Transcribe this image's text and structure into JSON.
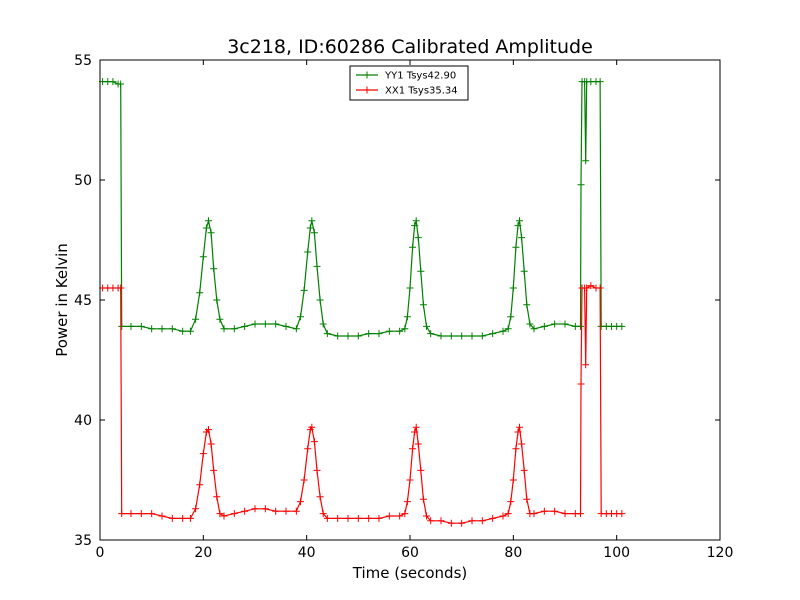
{
  "chart_data": {
    "type": "line",
    "title": "3c218, ID:60286 Calibrated Amplitude",
    "xlabel": "Time (seconds)",
    "ylabel": "Power in Kelvin",
    "xlim": [
      0,
      120
    ],
    "ylim": [
      35,
      55
    ],
    "xticks": [
      "0",
      "20",
      "40",
      "60",
      "80",
      "100",
      "120"
    ],
    "yticks": [
      "35",
      "40",
      "45",
      "50",
      "55"
    ],
    "grid": false,
    "legend_position": "top-center",
    "marker": "+",
    "series": [
      {
        "name": "YY1 Tsys42.90",
        "color": "#008000",
        "points": [
          [
            0.5,
            54.1
          ],
          [
            1.5,
            54.1
          ],
          [
            2.5,
            54.1
          ],
          [
            3.5,
            54.0
          ],
          [
            4.0,
            54.0
          ],
          [
            4.2,
            43.9
          ],
          [
            6,
            43.9
          ],
          [
            8,
            43.9
          ],
          [
            10,
            43.8
          ],
          [
            12,
            43.8
          ],
          [
            14,
            43.8
          ],
          [
            16,
            43.7
          ],
          [
            17.5,
            43.7
          ],
          [
            18.5,
            44.2
          ],
          [
            19.3,
            45.3
          ],
          [
            20.0,
            46.8
          ],
          [
            20.6,
            48.0
          ],
          [
            21.0,
            48.3
          ],
          [
            21.5,
            47.8
          ],
          [
            22.0,
            46.3
          ],
          [
            22.6,
            45.0
          ],
          [
            23.2,
            44.2
          ],
          [
            24,
            43.8
          ],
          [
            26,
            43.8
          ],
          [
            28,
            43.9
          ],
          [
            30,
            44.0
          ],
          [
            32,
            44.0
          ],
          [
            34,
            44.0
          ],
          [
            36,
            43.9
          ],
          [
            38,
            43.8
          ],
          [
            38.8,
            44.3
          ],
          [
            39.5,
            45.4
          ],
          [
            40.2,
            47.0
          ],
          [
            40.7,
            48.0
          ],
          [
            41.0,
            48.3
          ],
          [
            41.5,
            47.8
          ],
          [
            42.0,
            46.4
          ],
          [
            42.6,
            45.0
          ],
          [
            43.2,
            44.0
          ],
          [
            44,
            43.6
          ],
          [
            46,
            43.5
          ],
          [
            48,
            43.5
          ],
          [
            50,
            43.5
          ],
          [
            52,
            43.6
          ],
          [
            54,
            43.6
          ],
          [
            56,
            43.7
          ],
          [
            58,
            43.7
          ],
          [
            59,
            43.8
          ],
          [
            59.5,
            44.3
          ],
          [
            60.0,
            45.5
          ],
          [
            60.5,
            47.2
          ],
          [
            60.9,
            48.1
          ],
          [
            61.2,
            48.3
          ],
          [
            61.6,
            47.6
          ],
          [
            62.1,
            46.2
          ],
          [
            62.6,
            44.8
          ],
          [
            63.2,
            43.9
          ],
          [
            64,
            43.6
          ],
          [
            66,
            43.5
          ],
          [
            68,
            43.5
          ],
          [
            70,
            43.5
          ],
          [
            72,
            43.5
          ],
          [
            74,
            43.5
          ],
          [
            76,
            43.6
          ],
          [
            78,
            43.7
          ],
          [
            79,
            43.8
          ],
          [
            79.5,
            44.3
          ],
          [
            80.0,
            45.5
          ],
          [
            80.5,
            47.2
          ],
          [
            80.9,
            48.1
          ],
          [
            81.2,
            48.3
          ],
          [
            81.6,
            47.6
          ],
          [
            82.1,
            46.2
          ],
          [
            82.6,
            44.8
          ],
          [
            83.2,
            44.0
          ],
          [
            84,
            43.8
          ],
          [
            86,
            43.9
          ],
          [
            88,
            44.0
          ],
          [
            90,
            44.0
          ],
          [
            92,
            43.9
          ],
          [
            93.0,
            43.9
          ],
          [
            93.1,
            49.8
          ],
          [
            93.3,
            54.1
          ],
          [
            93.8,
            54.1
          ],
          [
            94.0,
            50.8
          ],
          [
            94.2,
            54.1
          ],
          [
            95,
            54.1
          ],
          [
            96,
            54.1
          ],
          [
            96.8,
            54.1
          ],
          [
            97.0,
            43.9
          ],
          [
            98,
            43.9
          ],
          [
            99,
            43.9
          ],
          [
            100,
            43.9
          ],
          [
            101,
            43.9
          ]
        ]
      },
      {
        "name": "XX1 Tsys35.34",
        "color": "#ff0000",
        "points": [
          [
            0.5,
            45.5
          ],
          [
            1.5,
            45.5
          ],
          [
            2.5,
            45.5
          ],
          [
            3.5,
            45.5
          ],
          [
            4.0,
            45.5
          ],
          [
            4.2,
            36.1
          ],
          [
            6,
            36.1
          ],
          [
            8,
            36.1
          ],
          [
            10,
            36.1
          ],
          [
            12,
            36.0
          ],
          [
            14,
            35.9
          ],
          [
            16,
            35.9
          ],
          [
            17.5,
            35.9
          ],
          [
            18.5,
            36.3
          ],
          [
            19.3,
            37.3
          ],
          [
            20.0,
            38.6
          ],
          [
            20.6,
            39.5
          ],
          [
            21.0,
            39.6
          ],
          [
            21.5,
            39.0
          ],
          [
            22.0,
            37.9
          ],
          [
            22.6,
            36.8
          ],
          [
            23.2,
            36.1
          ],
          [
            24,
            36.0
          ],
          [
            26,
            36.1
          ],
          [
            28,
            36.2
          ],
          [
            30,
            36.3
          ],
          [
            32,
            36.3
          ],
          [
            34,
            36.2
          ],
          [
            36,
            36.2
          ],
          [
            38,
            36.2
          ],
          [
            38.8,
            36.6
          ],
          [
            39.5,
            37.5
          ],
          [
            40.2,
            38.8
          ],
          [
            40.7,
            39.6
          ],
          [
            41.0,
            39.7
          ],
          [
            41.5,
            39.1
          ],
          [
            42.0,
            37.9
          ],
          [
            42.6,
            36.8
          ],
          [
            43.2,
            36.1
          ],
          [
            44,
            35.9
          ],
          [
            46,
            35.9
          ],
          [
            48,
            35.9
          ],
          [
            50,
            35.9
          ],
          [
            52,
            35.9
          ],
          [
            54,
            35.9
          ],
          [
            56,
            36.0
          ],
          [
            58,
            36.0
          ],
          [
            59,
            36.1
          ],
          [
            59.5,
            36.6
          ],
          [
            60.0,
            37.5
          ],
          [
            60.5,
            38.8
          ],
          [
            60.9,
            39.5
          ],
          [
            61.2,
            39.7
          ],
          [
            61.6,
            39.0
          ],
          [
            62.1,
            37.9
          ],
          [
            62.6,
            36.7
          ],
          [
            63.2,
            36.0
          ],
          [
            64,
            35.8
          ],
          [
            66,
            35.8
          ],
          [
            68,
            35.7
          ],
          [
            70,
            35.7
          ],
          [
            72,
            35.8
          ],
          [
            74,
            35.8
          ],
          [
            76,
            35.9
          ],
          [
            78,
            36.0
          ],
          [
            79,
            36.1
          ],
          [
            79.5,
            36.6
          ],
          [
            80.0,
            37.5
          ],
          [
            80.5,
            38.8
          ],
          [
            80.9,
            39.5
          ],
          [
            81.2,
            39.7
          ],
          [
            81.6,
            39.0
          ],
          [
            82.1,
            37.9
          ],
          [
            82.6,
            36.7
          ],
          [
            83.2,
            36.1
          ],
          [
            84,
            36.1
          ],
          [
            86,
            36.2
          ],
          [
            88,
            36.2
          ],
          [
            90,
            36.1
          ],
          [
            92,
            36.1
          ],
          [
            93.0,
            36.1
          ],
          [
            93.1,
            41.5
          ],
          [
            93.3,
            45.5
          ],
          [
            93.8,
            45.5
          ],
          [
            94.0,
            42.3
          ],
          [
            94.2,
            45.5
          ],
          [
            95,
            45.6
          ],
          [
            96,
            45.5
          ],
          [
            96.8,
            45.5
          ],
          [
            97.0,
            36.1
          ],
          [
            98,
            36.1
          ],
          [
            99,
            36.1
          ],
          [
            100,
            36.1
          ],
          [
            101,
            36.1
          ]
        ]
      }
    ]
  }
}
